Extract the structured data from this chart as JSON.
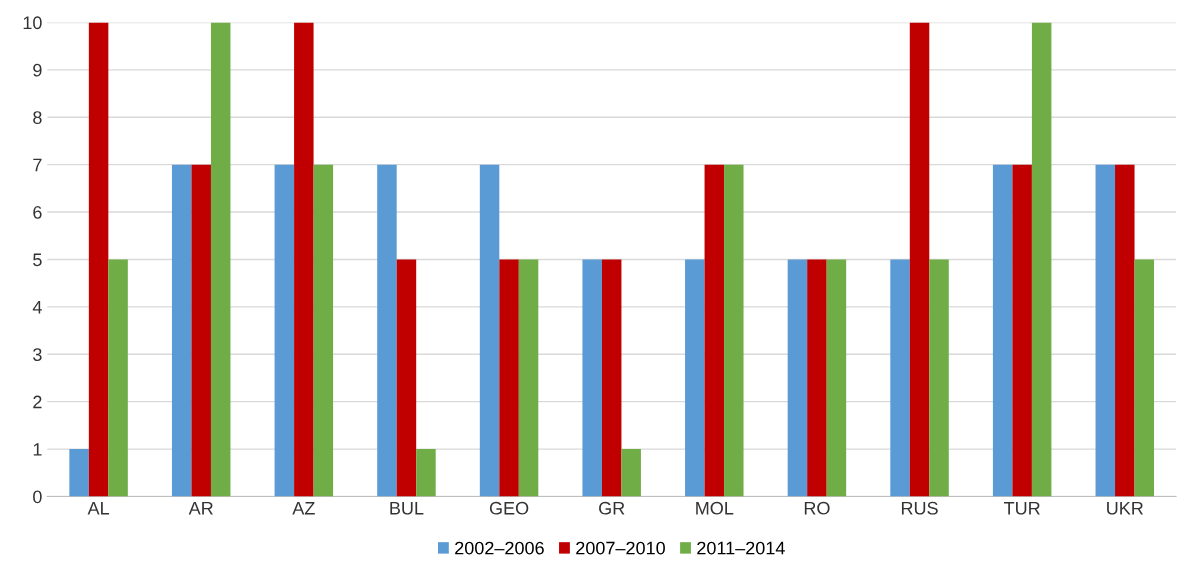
{
  "chart_data": {
    "type": "bar",
    "categories": [
      "AL",
      "AR",
      "AZ",
      "BUL",
      "GEO",
      "GR",
      "MOL",
      "RO",
      "RUS",
      "TUR",
      "UKR"
    ],
    "series": [
      {
        "name": "2002–2006",
        "color": "#5b9bd5",
        "values": [
          1,
          7,
          7,
          7,
          7,
          5,
          5,
          5,
          5,
          7,
          7
        ]
      },
      {
        "name": "2007–2010",
        "color": "#c00000",
        "values": [
          10,
          7,
          10,
          5,
          5,
          5,
          7,
          5,
          10,
          7,
          7
        ]
      },
      {
        "name": "2011–2014",
        "color": "#70ad47",
        "values": [
          5,
          10,
          7,
          1,
          5,
          1,
          7,
          5,
          5,
          10,
          5
        ]
      }
    ],
    "ylim": [
      0,
      10
    ],
    "yticks": [
      0,
      1,
      2,
      3,
      4,
      5,
      6,
      7,
      8,
      9,
      10
    ],
    "grid": "y",
    "legend": "bottom"
  }
}
